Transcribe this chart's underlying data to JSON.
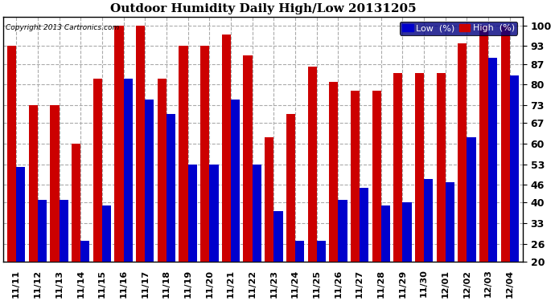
{
  "title": "Outdoor Humidity Daily High/Low 20131205",
  "copyright": "Copyright 2013 Cartronics.com",
  "background_color": "#ffffff",
  "plot_bg_color": "#ffffff",
  "grid_color": "#aaaaaa",
  "bar_color_low": "#0000cc",
  "bar_color_high": "#cc0000",
  "legend_low_label": "Low  (%)",
  "legend_high_label": "High  (%)",
  "legend_bg": "#000080",
  "ymin": 20,
  "ymax": 103,
  "yticks": [
    20,
    26,
    33,
    40,
    46,
    53,
    60,
    67,
    73,
    80,
    87,
    93,
    100
  ],
  "dates": [
    "11/11",
    "11/12",
    "11/13",
    "11/14",
    "11/15",
    "11/16",
    "11/17",
    "11/18",
    "11/19",
    "11/20",
    "11/21",
    "11/22",
    "11/23",
    "11/24",
    "11/25",
    "11/26",
    "11/27",
    "11/28",
    "11/29",
    "11/30",
    "12/01",
    "12/02",
    "12/03",
    "12/04"
  ],
  "high": [
    93,
    73,
    73,
    60,
    82,
    100,
    100,
    82,
    93,
    93,
    97,
    90,
    62,
    70,
    86,
    81,
    78,
    78,
    84,
    84,
    84,
    94,
    100,
    100
  ],
  "low": [
    52,
    41,
    41,
    27,
    39,
    82,
    75,
    70,
    53,
    53,
    75,
    53,
    37,
    27,
    27,
    41,
    45,
    39,
    40,
    48,
    47,
    62,
    89,
    83
  ]
}
